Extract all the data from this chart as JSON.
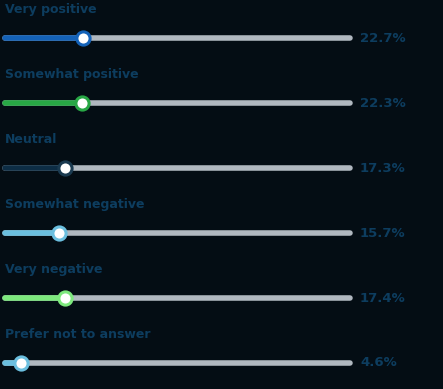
{
  "categories": [
    "Very positive",
    "Somewhat positive",
    "Neutral",
    "Somewhat negative",
    "Very negative",
    "Prefer not to answer"
  ],
  "values": [
    22.7,
    22.3,
    17.3,
    15.7,
    17.4,
    4.6
  ],
  "labels": [
    "22.7%",
    "22.3%",
    "17.3%",
    "15.7%",
    "17.4%",
    "4.6%"
  ],
  "fill_colors": [
    "#1462b8",
    "#28a745",
    "#0d2d45",
    "#6bbfdf",
    "#7de87d",
    "#6bbfdf"
  ],
  "dot_border_colors": [
    "#1462b8",
    "#28a745",
    "#1a3a50",
    "#6bbfdf",
    "#7de87d",
    "#6bbfdf"
  ],
  "label_color": "#0d3d5f",
  "title_color": "#0d3d5f",
  "background_color": "#040d14",
  "track_color": "#b0b8c0",
  "fig_width": 4.43,
  "fig_height": 3.89,
  "dpi": 100
}
